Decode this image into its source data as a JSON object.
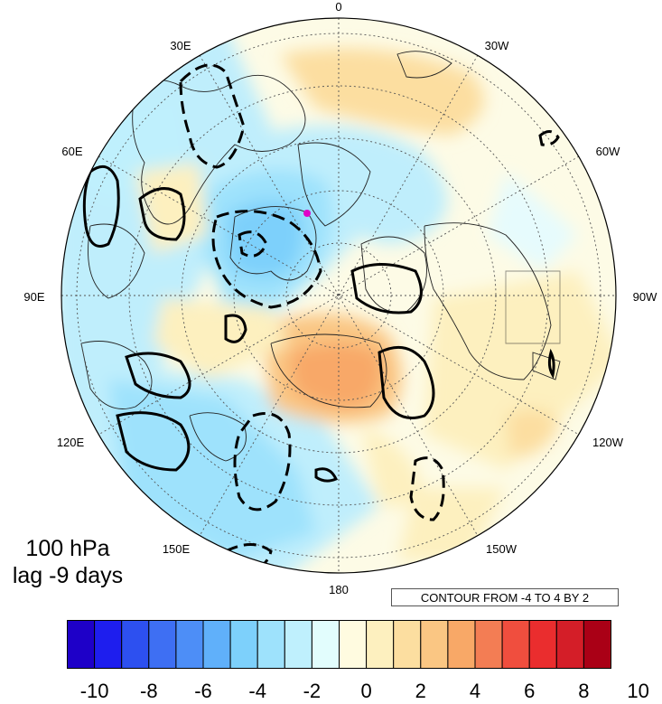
{
  "level": "100 hPa",
  "lag": "lag -9 days",
  "contour_note": "CONTOUR FROM -4 TO 4 BY 2",
  "longitude_labels": [
    "0",
    "30W",
    "60W",
    "90W",
    "120W",
    "150W",
    "180",
    "150E",
    "120E",
    "90E",
    "60E",
    "30E"
  ],
  "colorbar": {
    "colors": [
      "#1e00c8",
      "#1e1eee",
      "#2d50f0",
      "#3e6ff3",
      "#4d8ef7",
      "#60b0fa",
      "#7dd0fb",
      "#9ee2fc",
      "#bff0fd",
      "#e2fdfd",
      "#fffbe0",
      "#fdf0bf",
      "#fcdea0",
      "#fac683",
      "#f8a867",
      "#f37d54",
      "#f04e3e",
      "#ea2d2e",
      "#d41e28",
      "#aa0016"
    ],
    "tick_labels": [
      "-10",
      "-8",
      "-6",
      "-4",
      "-2",
      "0",
      "2",
      "4",
      "6",
      "8",
      "10"
    ]
  },
  "marker_color": "#e000c8"
}
